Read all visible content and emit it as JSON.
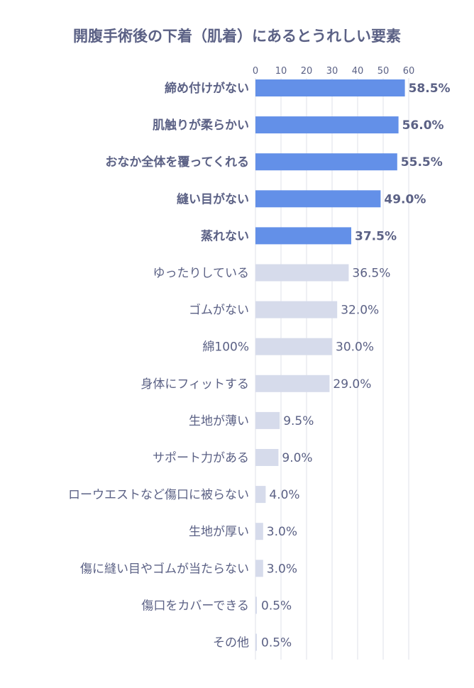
{
  "chart_data": {
    "type": "bar",
    "orientation": "horizontal",
    "title": "開腹手術後の下着（肌着）にあるとうれしい要素",
    "xlabel": "",
    "ylabel": "",
    "xlim": [
      0,
      60
    ],
    "ticks": [
      "0",
      "10",
      "20",
      "30",
      "40",
      "50",
      "60"
    ],
    "tick_values": [
      0,
      10,
      20,
      30,
      40,
      50,
      60
    ],
    "grid": true,
    "categories": [
      "締め付けがない",
      "肌触りが柔らかい",
      "おなか全体を覆ってくれる",
      "縫い目がない",
      "蒸れない",
      "ゆったりしている",
      "ゴムがない",
      "綿100%",
      "身体にフィットする",
      "生地が薄い",
      "サポート力がある",
      "ローウエストなど傷口に被らない",
      "生地が厚い",
      "傷に縫い目やゴムが当たらない",
      "傷口をカバーできる",
      "その他"
    ],
    "values": [
      58.5,
      56.0,
      55.5,
      49.0,
      37.5,
      36.5,
      32.0,
      30.0,
      29.0,
      9.5,
      9.0,
      4.0,
      3.0,
      3.0,
      0.5,
      0.5
    ],
    "value_labels": [
      "58.5%",
      "56.0%",
      "55.5%",
      "49.0%",
      "37.5%",
      "36.5%",
      "32.0%",
      "30.0%",
      "29.0%",
      "9.5%",
      "9.0%",
      "4.0%",
      "3.0%",
      "3.0%",
      "0.5%",
      "0.5%"
    ],
    "highlight_top_n": 5,
    "colors": {
      "highlight": "#6390e8",
      "normal": "#d6dbeb",
      "text": "#5b6185",
      "grid": "#dfe1ea"
    }
  }
}
